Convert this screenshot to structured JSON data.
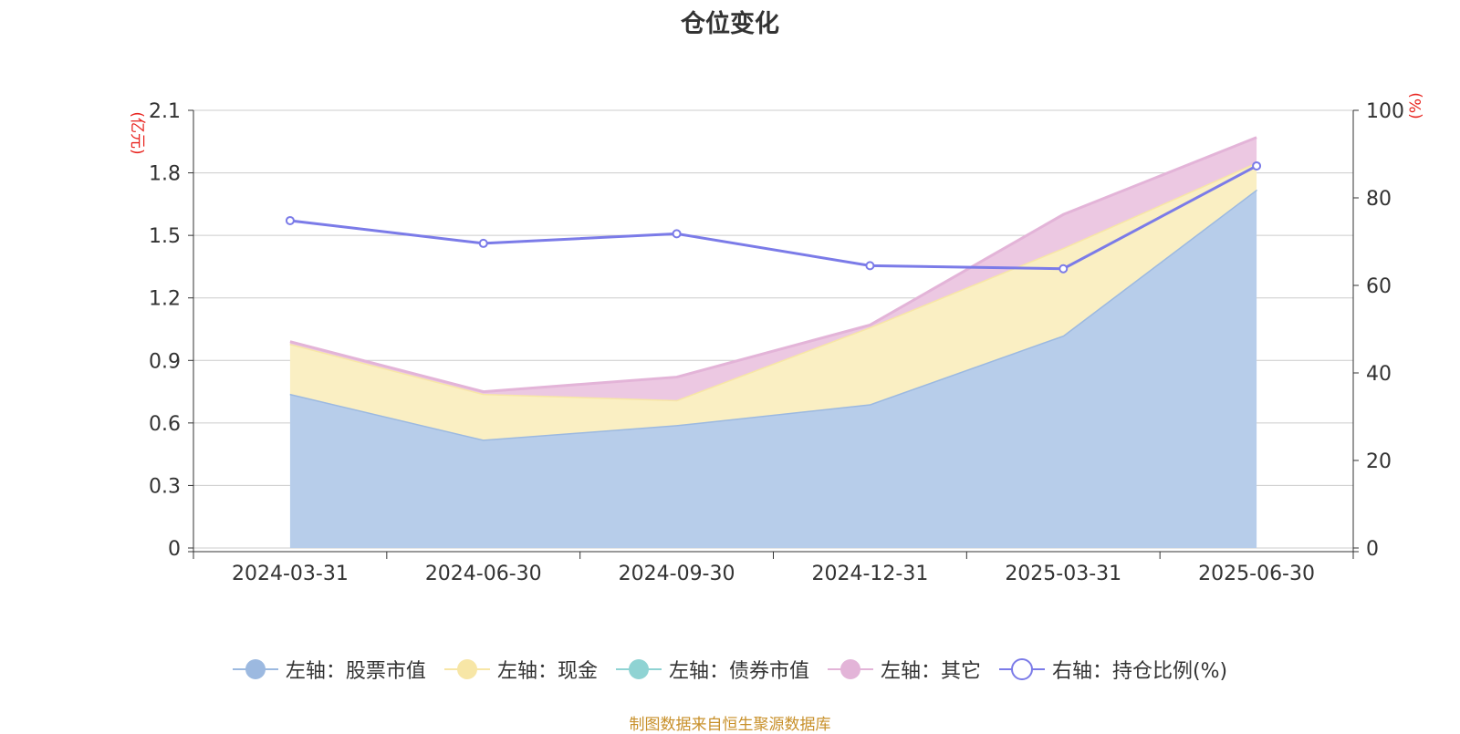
{
  "chart_data": {
    "type": "area",
    "title": "仓位变化",
    "categories": [
      "2024-03-31",
      "2024-06-30",
      "2024-09-30",
      "2024-12-31",
      "2025-03-31",
      "2025-06-30"
    ],
    "y_left": {
      "unit_label": "(亿元)",
      "range": [
        0,
        2.1
      ],
      "ticks": [
        "0",
        "0.3",
        "0.6",
        "0.9",
        "1.2",
        "1.5",
        "1.8",
        "2.1"
      ]
    },
    "y_right": {
      "unit_label": "(%)",
      "range": [
        0,
        100
      ],
      "ticks": [
        "0",
        "20",
        "40",
        "60",
        "80",
        "100"
      ]
    },
    "series": [
      {
        "name": "左轴：股票市值",
        "axis": "left",
        "kind": "stacked-area",
        "color": "#9cb9e0",
        "fill": "#b7cdea",
        "values": [
          0.74,
          0.52,
          0.59,
          0.69,
          1.02,
          1.72
        ]
      },
      {
        "name": "左轴：现金",
        "axis": "left",
        "kind": "stacked-area",
        "color": "#f7e6a6",
        "fill": "#faefc3",
        "values": [
          0.24,
          0.22,
          0.12,
          0.37,
          0.42,
          0.13
        ]
      },
      {
        "name": "左轴：债券市值",
        "axis": "left",
        "kind": "stacked-area",
        "color": "#8fd3d3",
        "fill": "#bfe6e6",
        "values": [
          0,
          0,
          0,
          0,
          0,
          0
        ]
      },
      {
        "name": "左轴：其它",
        "axis": "left",
        "kind": "stacked-area",
        "color": "#e3b4d8",
        "fill": "#ecc8e2",
        "values": [
          0.01,
          0.01,
          0.11,
          0.01,
          0.16,
          0.12
        ]
      },
      {
        "name": "右轴：持仓比例(%)",
        "axis": "right",
        "kind": "line",
        "color": "#7b7be8",
        "values": [
          74.8,
          69.6,
          71.8,
          64.5,
          63.8,
          87.3
        ]
      }
    ],
    "grid": true,
    "legend_position": "bottom"
  },
  "source_note": "制图数据来自恒生聚源数据库"
}
